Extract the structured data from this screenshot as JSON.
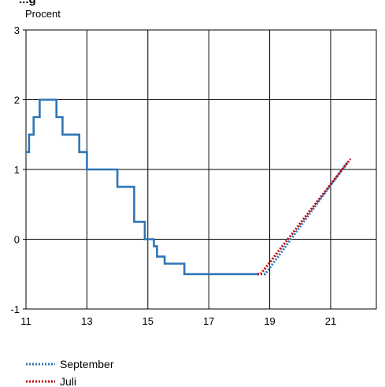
{
  "chart_data": {
    "type": "line",
    "title": "...g",
    "ylabel": "Procent",
    "xlim": [
      11,
      22.5
    ],
    "ylim": [
      -1,
      3
    ],
    "x_ticks": [
      11,
      13,
      15,
      17,
      19,
      21
    ],
    "y_ticks": [
      -1,
      0,
      1,
      2,
      3
    ],
    "grid": true,
    "legend_position": "bottom-left",
    "series": [
      {
        "name": "",
        "style": "solid-step",
        "color": "#2E75B6",
        "points": [
          [
            11.0,
            1.25
          ],
          [
            11.1,
            1.25
          ],
          [
            11.1,
            1.5
          ],
          [
            11.25,
            1.5
          ],
          [
            11.25,
            1.75
          ],
          [
            11.45,
            1.75
          ],
          [
            11.45,
            2.0
          ],
          [
            12.0,
            2.0
          ],
          [
            12.0,
            1.75
          ],
          [
            12.2,
            1.75
          ],
          [
            12.2,
            1.5
          ],
          [
            12.75,
            1.5
          ],
          [
            12.75,
            1.25
          ],
          [
            13.0,
            1.25
          ],
          [
            13.0,
            1.0
          ],
          [
            14.0,
            1.0
          ],
          [
            14.0,
            0.75
          ],
          [
            14.55,
            0.75
          ],
          [
            14.55,
            0.25
          ],
          [
            14.9,
            0.25
          ],
          [
            14.9,
            0.0
          ],
          [
            15.2,
            0.0
          ],
          [
            15.2,
            -0.1
          ],
          [
            15.3,
            -0.1
          ],
          [
            15.3,
            -0.25
          ],
          [
            15.55,
            -0.25
          ],
          [
            15.55,
            -0.35
          ],
          [
            16.2,
            -0.35
          ],
          [
            16.2,
            -0.5
          ],
          [
            18.65,
            -0.5
          ]
        ]
      },
      {
        "name": "September",
        "style": "dotted",
        "color": "#2E75B6",
        "points": [
          [
            18.7,
            -0.5
          ],
          [
            18.85,
            -0.5
          ],
          [
            21.55,
            1.1
          ]
        ]
      },
      {
        "name": "Juli",
        "style": "dotted",
        "color": "#C00000",
        "points": [
          [
            18.6,
            -0.5
          ],
          [
            18.7,
            -0.5
          ],
          [
            21.65,
            1.15
          ]
        ]
      }
    ]
  },
  "legend": [
    {
      "label": "September",
      "color": "#2E75B6"
    },
    {
      "label": "Juli",
      "color": "#C00000"
    }
  ]
}
